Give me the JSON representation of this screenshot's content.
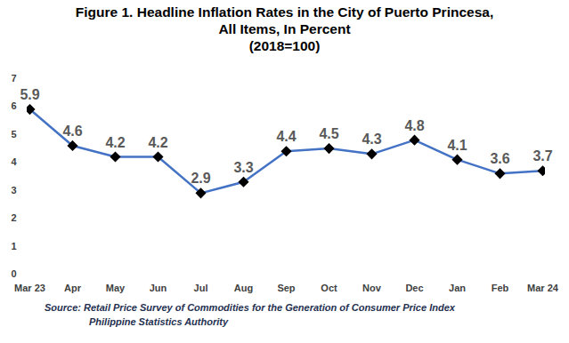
{
  "chart_data": {
    "type": "line",
    "title": "Figure 1. Headline Inflation Rates in the City of Puerto Princesa,\nAll Items, In Percent\n(2018=100)",
    "source": "Source: Retail Price Survey of Commodities for the Generation of Consumer Price Index\nPhilippine Statistics Authority",
    "categories": [
      "Mar 23",
      "Apr",
      "May",
      "Jun",
      "Jul",
      "Aug",
      "Sep",
      "Oct",
      "Nov",
      "Dec",
      "Jan",
      "Feb",
      "Mar 24"
    ],
    "values": [
      5.9,
      4.6,
      4.2,
      4.2,
      2.9,
      3.3,
      4.4,
      4.5,
      4.3,
      4.8,
      4.1,
      3.6,
      3.7
    ],
    "color": "#4472c4",
    "marker": "diamond",
    "ylim": [
      0,
      7
    ],
    "yticks": [
      0,
      1,
      2,
      3,
      4,
      5,
      6,
      7
    ],
    "grid": false,
    "data_labels": true
  }
}
